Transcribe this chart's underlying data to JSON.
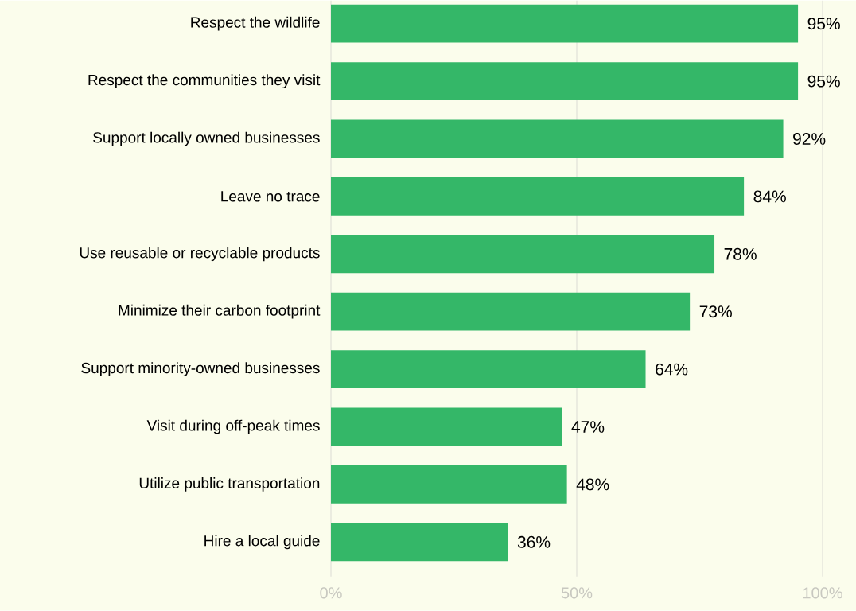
{
  "chart_data": {
    "type": "bar",
    "orientation": "horizontal",
    "categories": [
      "Respect the wildlife",
      "Respect the communities they visit",
      "Support locally owned businesses",
      "Leave no trace",
      "Use reusable or recyclable products",
      "Minimize their carbon footprint",
      "Support minority-owned businesses",
      "Visit during off-peak times",
      "Utilize public transportation",
      "Hire a local guide"
    ],
    "values": [
      95,
      95,
      92,
      84,
      78,
      73,
      64,
      47,
      48,
      36
    ],
    "value_labels": [
      "95%",
      "95%",
      "92%",
      "84%",
      "78%",
      "73%",
      "64%",
      "47%",
      "48%",
      "36%"
    ],
    "color": "#34b768",
    "xlim": [
      0,
      100
    ],
    "xticks": [
      {
        "value": 0,
        "label": "0%"
      },
      {
        "value": 50,
        "label": "50%"
      },
      {
        "value": 100,
        "label": "100%"
      }
    ],
    "grid": "x"
  }
}
